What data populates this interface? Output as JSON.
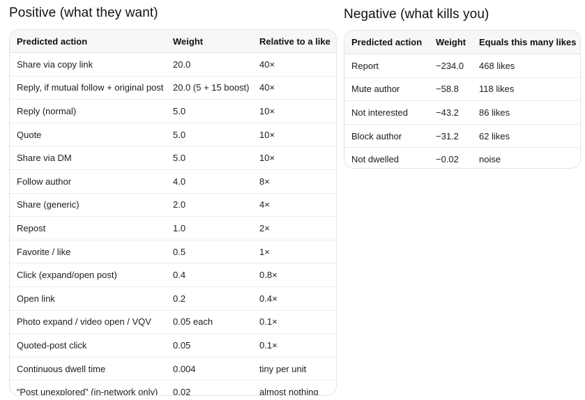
{
  "positive": {
    "title": "Positive (what they want)",
    "headers": [
      "Predicted action",
      "Weight",
      "Relative to a like"
    ],
    "rows": [
      [
        "Share via copy link",
        "20.0",
        "40×"
      ],
      [
        "Reply, if mutual follow + original post",
        "20.0 (5 + 15 boost)",
        "40×"
      ],
      [
        "Reply (normal)",
        "5.0",
        "10×"
      ],
      [
        "Quote",
        "5.0",
        "10×"
      ],
      [
        "Share via DM",
        "5.0",
        "10×"
      ],
      [
        "Follow author",
        "4.0",
        "8×"
      ],
      [
        "Share (generic)",
        "2.0",
        "4×"
      ],
      [
        "Repost",
        "1.0",
        "2×"
      ],
      [
        "Favorite / like",
        "0.5",
        "1×"
      ],
      [
        "Click (expand/open post)",
        "0.4",
        "0.8×"
      ],
      [
        "Open link",
        "0.2",
        "0.4×"
      ],
      [
        "Photo expand / video open / VQV",
        "0.05 each",
        "0.1×"
      ],
      [
        "Quoted-post click",
        "0.05",
        "0.1×"
      ],
      [
        "Continuous dwell time",
        "0.004",
        "tiny per unit"
      ],
      [
        "“Post unexplored” (in-network only)",
        "0.02",
        "almost nothing"
      ]
    ]
  },
  "negative": {
    "title": "Negative (what kills you)",
    "headers": [
      "Predicted action",
      "Weight",
      "Equals this many likes"
    ],
    "rows": [
      [
        "Report",
        "−234.0",
        "468 likes"
      ],
      [
        "Mute author",
        "−58.8",
        "118 likes"
      ],
      [
        "Not interested",
        "−43.2",
        "86 likes"
      ],
      [
        "Block author",
        "−31.2",
        "62 likes"
      ],
      [
        "Not dwelled",
        "−0.02",
        "noise"
      ]
    ]
  }
}
